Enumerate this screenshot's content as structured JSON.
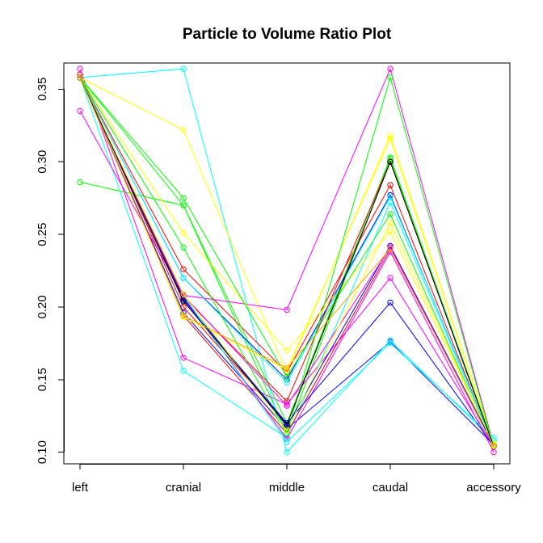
{
  "chart_data": {
    "type": "line",
    "title": "Particle to Volume Ratio Plot",
    "xlabel": "",
    "ylabel": "",
    "categories": [
      "left",
      "cranial",
      "middle",
      "caudal",
      "accessory"
    ],
    "ylim": [
      0.092,
      0.368
    ],
    "yticks": [
      0.1,
      0.15,
      0.2,
      0.25,
      0.3,
      0.35
    ],
    "ytick_labels": [
      "0.10",
      "0.15",
      "0.20",
      "0.25",
      "0.30",
      "0.35"
    ],
    "grid": false,
    "legend": "none",
    "markers": "open circles",
    "series": [
      {
        "color": "#FF0000",
        "values": [
          0.36,
          0.2,
          0.12,
          0.3,
          0.104
        ]
      },
      {
        "color": "#00FF00",
        "values": [
          0.358,
          0.27,
          0.113,
          0.302,
          0.105
        ]
      },
      {
        "color": "#0000FF",
        "values": [
          0.358,
          0.196,
          0.116,
          0.176,
          0.105
        ]
      },
      {
        "color": "#00FFFF",
        "values": [
          0.358,
          0.364,
          0.1,
          0.177,
          0.108
        ]
      },
      {
        "color": "#FF00FF",
        "values": [
          0.364,
          0.165,
          0.133,
          0.22,
          0.104
        ]
      },
      {
        "color": "#FFFF00",
        "values": [
          0.358,
          0.322,
          0.155,
          0.318,
          0.106
        ]
      },
      {
        "color": "#FF0000",
        "values": [
          0.358,
          0.226,
          0.155,
          0.284,
          0.104
        ]
      },
      {
        "color": "#00FF00",
        "values": [
          0.286,
          0.27,
          0.12,
          0.303,
          0.104
        ]
      },
      {
        "color": "#0000FF",
        "values": [
          0.358,
          0.22,
          0.15,
          0.277,
          0.104
        ]
      },
      {
        "color": "#00FFFF",
        "values": [
          0.358,
          0.156,
          0.11,
          0.272,
          0.105
        ]
      },
      {
        "color": "#FF00FF",
        "values": [
          0.335,
          0.208,
          0.198,
          0.364,
          0.105
        ]
      },
      {
        "color": "#FFFF00",
        "values": [
          0.358,
          0.251,
          0.17,
          0.252,
          0.105
        ]
      },
      {
        "color": "#FF0000",
        "values": [
          0.358,
          0.194,
          0.113,
          0.24,
          0.104
        ]
      },
      {
        "color": "#00FF00",
        "values": [
          0.358,
          0.275,
          0.152,
          0.264,
          0.104
        ]
      },
      {
        "color": "#0000FF",
        "values": [
          0.358,
          0.206,
          0.118,
          0.242,
          0.105
        ]
      },
      {
        "color": "#00FFFF",
        "values": [
          0.358,
          0.22,
          0.148,
          0.276,
          0.105
        ]
      },
      {
        "color": "#FF00FF",
        "values": [
          0.358,
          0.207,
          0.109,
          0.238,
          0.1
        ]
      },
      {
        "color": "#FFFF00",
        "values": [
          0.358,
          0.193,
          0.157,
          0.316,
          0.106
        ]
      },
      {
        "color": "#FF0000",
        "values": [
          0.358,
          0.207,
          0.135,
          0.3,
          0.104
        ]
      },
      {
        "color": "#00FF00",
        "values": [
          0.358,
          0.241,
          0.113,
          0.358,
          0.104
        ]
      },
      {
        "color": "#0000FF",
        "values": [
          0.358,
          0.205,
          0.12,
          0.203,
          0.104
        ]
      },
      {
        "color": "#00FFFF",
        "values": [
          0.358,
          0.208,
          0.107,
          0.175,
          0.11
        ]
      },
      {
        "color": "#FF00FF",
        "values": [
          0.358,
          0.208,
          0.132,
          0.241,
          0.104
        ]
      },
      {
        "color": "#FFFF00",
        "values": [
          0.358,
          0.209,
          0.115,
          0.258,
          0.105
        ]
      },
      {
        "color": "#000000",
        "values": [
          0.358,
          0.204,
          0.119,
          0.3,
          0.104
        ]
      },
      {
        "color": "#FFA500",
        "values": [
          0.358,
          0.194,
          0.158,
          0.24,
          0.104
        ]
      }
    ]
  }
}
